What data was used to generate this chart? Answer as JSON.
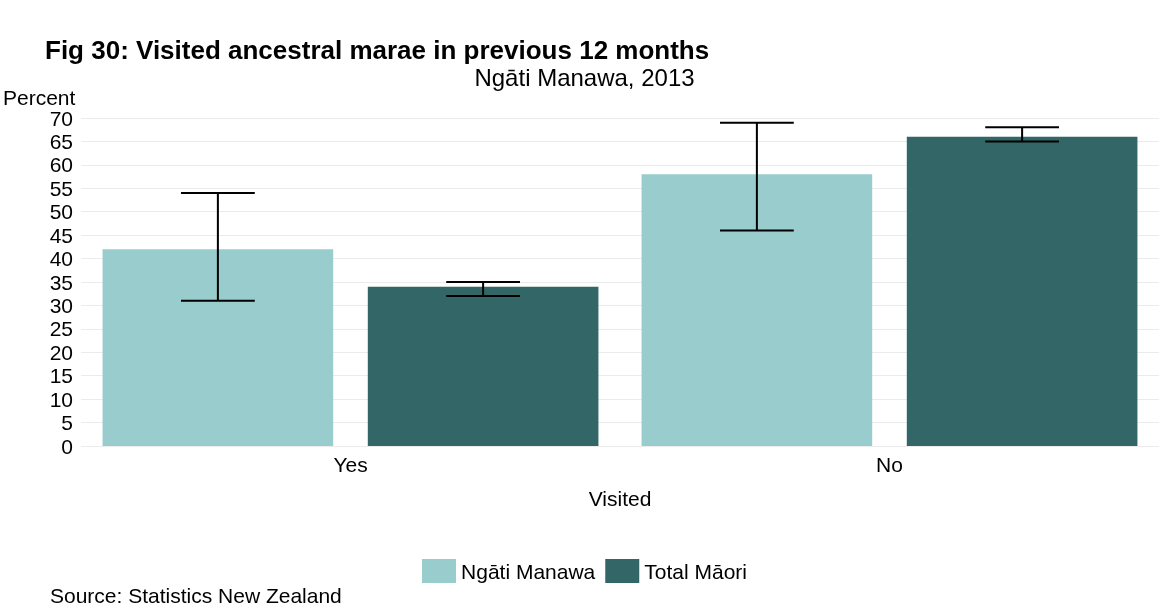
{
  "chart_data": {
    "type": "bar",
    "title": "Fig 30: Visited ancestral marae in previous 12 months",
    "subtitle": "Ngāti Manawa, 2013",
    "xlabel": "Visited",
    "ylabel": "Percent",
    "categories": [
      "Yes",
      "No"
    ],
    "series": [
      {
        "name": "Ngāti Manawa",
        "color": "#99cccc",
        "values": [
          42,
          58
        ],
        "errors": [
          [
            31,
            54
          ],
          [
            46,
            69
          ]
        ]
      },
      {
        "name": "Total Māori",
        "color": "#336666",
        "values": [
          34,
          66
        ],
        "errors": [
          [
            32,
            35
          ],
          [
            65,
            68
          ]
        ]
      }
    ],
    "ylim": [
      0,
      70
    ],
    "yticks": [
      0,
      5,
      10,
      15,
      20,
      25,
      30,
      35,
      40,
      45,
      50,
      55,
      60,
      65,
      70
    ],
    "grid": "y",
    "legend": "bottom",
    "annotations": [
      "Source: Statistics New Zealand"
    ]
  }
}
